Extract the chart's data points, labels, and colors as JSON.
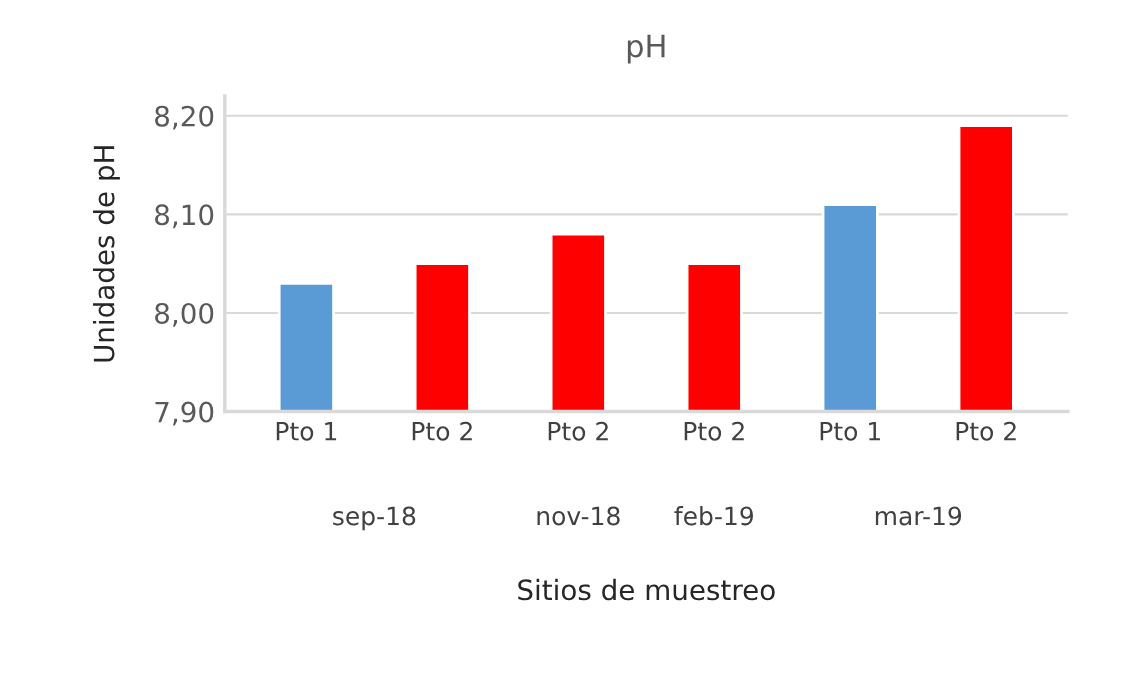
{
  "chart_data": {
    "type": "bar",
    "title": "pH",
    "xlabel": "Sitios de muestreo",
    "ylabel": "Unidades de pH",
    "categories": [
      "Pto 1",
      "Pto 2",
      "Pto 2",
      "Pto 2",
      "Pto 1",
      "Pto 2"
    ],
    "values": [
      8.03,
      8.05,
      8.08,
      8.05,
      8.11,
      8.19
    ],
    "colors": [
      "#5b9bd5",
      "#ff0000",
      "#ff0000",
      "#ff0000",
      "#5b9bd5",
      "#ff0000"
    ],
    "annotations": [
      "sep-18",
      "nov-18",
      "feb-19",
      "mar-19"
    ],
    "ylim": [
      7.9,
      8.22
    ],
    "yticks": [
      {
        "value": 7.9,
        "label": "7,90"
      },
      {
        "value": 8.0,
        "label": "8,00"
      },
      {
        "value": 8.1,
        "label": "8,10"
      },
      {
        "value": 8.2,
        "label": "8,20"
      }
    ],
    "grid": "y",
    "legend": false
  }
}
